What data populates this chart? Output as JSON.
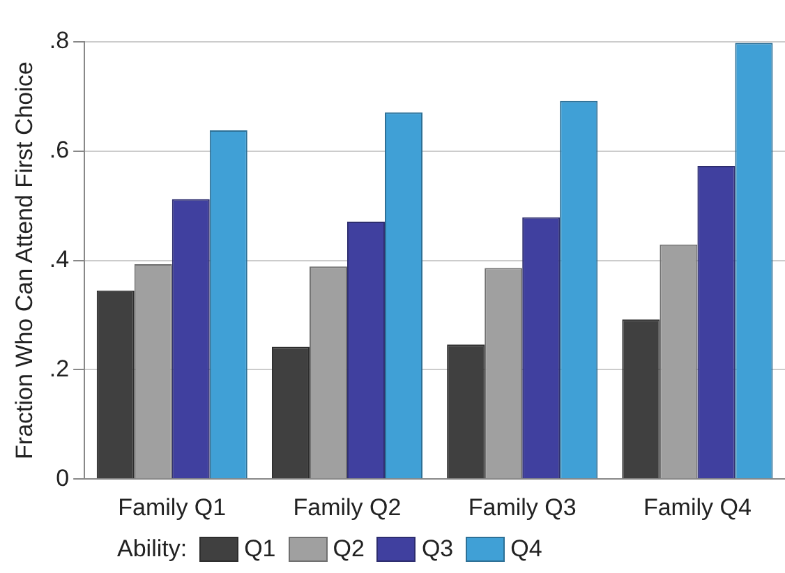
{
  "chart_data": {
    "type": "bar",
    "ylabel": "Fraction Who Can Attend First Choice",
    "legend_title": "Ability:",
    "legend": "bottom",
    "grid": "y",
    "categories": [
      "Family Q1",
      "Family Q2",
      "Family Q3",
      "Family Q4"
    ],
    "series": [
      {
        "name": "Q1",
        "color": "#404040",
        "values": [
          0.345,
          0.242,
          0.246,
          0.292
        ]
      },
      {
        "name": "Q2",
        "color": "#a0a0a0",
        "values": [
          0.393,
          0.389,
          0.386,
          0.429
        ]
      },
      {
        "name": "Q3",
        "color": "#40409f",
        "values": [
          0.512,
          0.471,
          0.479,
          0.573
        ]
      },
      {
        "name": "Q4",
        "color": "#40a0d6",
        "values": [
          0.638,
          0.671,
          0.692,
          0.798
        ]
      }
    ],
    "ylim": [
      0,
      0.8
    ],
    "yticks": [
      {
        "value": 0,
        "label": "0"
      },
      {
        "value": 0.2,
        "label": ".2"
      },
      {
        "value": 0.4,
        "label": ".4"
      },
      {
        "value": 0.6,
        "label": ".6"
      },
      {
        "value": 0.8,
        "label": ".8"
      }
    ]
  }
}
